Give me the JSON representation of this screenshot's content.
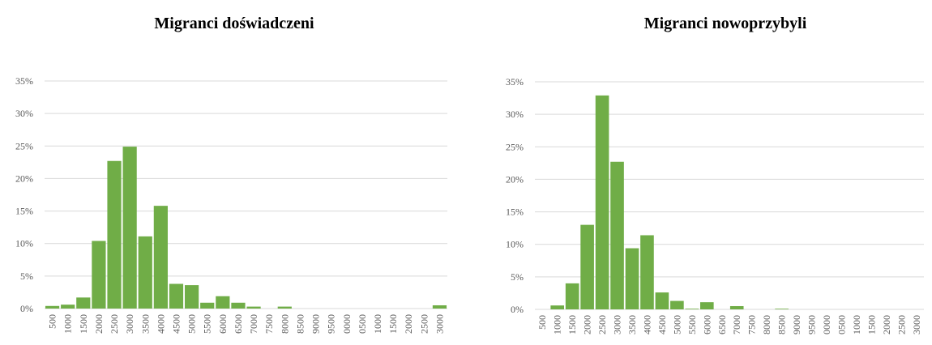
{
  "chart_data": [
    {
      "type": "bar",
      "title": "Migranci doświadczeni",
      "color": "#70ad47",
      "grid": true,
      "categories": [
        "500",
        "1000",
        "1500",
        "2000",
        "2500",
        "3000",
        "3500",
        "4000",
        "4500",
        "5000",
        "5500",
        "6000",
        "6500",
        "7000",
        "7500",
        "8000",
        "8500",
        "9000",
        "9500",
        "0000",
        "0500",
        "1000",
        "1500",
        "2000",
        "2500",
        "3000"
      ],
      "values": [
        0.4,
        0.6,
        1.7,
        10.4,
        22.7,
        24.9,
        11.1,
        15.8,
        3.8,
        3.6,
        0.9,
        1.9,
        0.9,
        0.3,
        0,
        0.3,
        0,
        0,
        0,
        0,
        0,
        0,
        0,
        0,
        0,
        0.5
      ],
      "ylim": [
        0,
        35
      ],
      "yticks": [
        {
          "value": 0,
          "label": "0%"
        },
        {
          "value": 5,
          "label": "5%"
        },
        {
          "value": 10,
          "label": "10%"
        },
        {
          "value": 15,
          "label": "15%"
        },
        {
          "value": 20,
          "label": "20%"
        },
        {
          "value": 25,
          "label": "25%"
        },
        {
          "value": 30,
          "label": "30%"
        },
        {
          "value": 35,
          "label": "35%"
        }
      ]
    },
    {
      "type": "bar",
      "title": "Migranci nowoprzybyli",
      "color": "#70ad47",
      "grid": true,
      "categories": [
        "500",
        "1000",
        "1500",
        "2000",
        "2500",
        "3000",
        "3500",
        "4000",
        "4500",
        "5000",
        "5500",
        "6000",
        "6500",
        "7000",
        "7500",
        "8000",
        "8500",
        "9000",
        "9500",
        "0000",
        "0500",
        "1000",
        "1500",
        "2000",
        "2500",
        "3000"
      ],
      "values": [
        0,
        0.6,
        4,
        13,
        32.9,
        22.7,
        9.4,
        11.4,
        2.6,
        1.3,
        0.1,
        1.1,
        0,
        0.5,
        0,
        0,
        0.1,
        0,
        0,
        0,
        0,
        0,
        0,
        0,
        0,
        0
      ],
      "ylim": [
        0,
        35
      ],
      "yticks": [
        {
          "value": 0,
          "label": "0%"
        },
        {
          "value": 5,
          "label": "5%"
        },
        {
          "value": 10,
          "label": "10%"
        },
        {
          "value": 15,
          "label": "15%"
        },
        {
          "value": 20,
          "label": "20%"
        },
        {
          "value": 25,
          "label": "25%"
        },
        {
          "value": 30,
          "label": "30%"
        },
        {
          "value": 35,
          "label": "35%"
        }
      ]
    }
  ]
}
